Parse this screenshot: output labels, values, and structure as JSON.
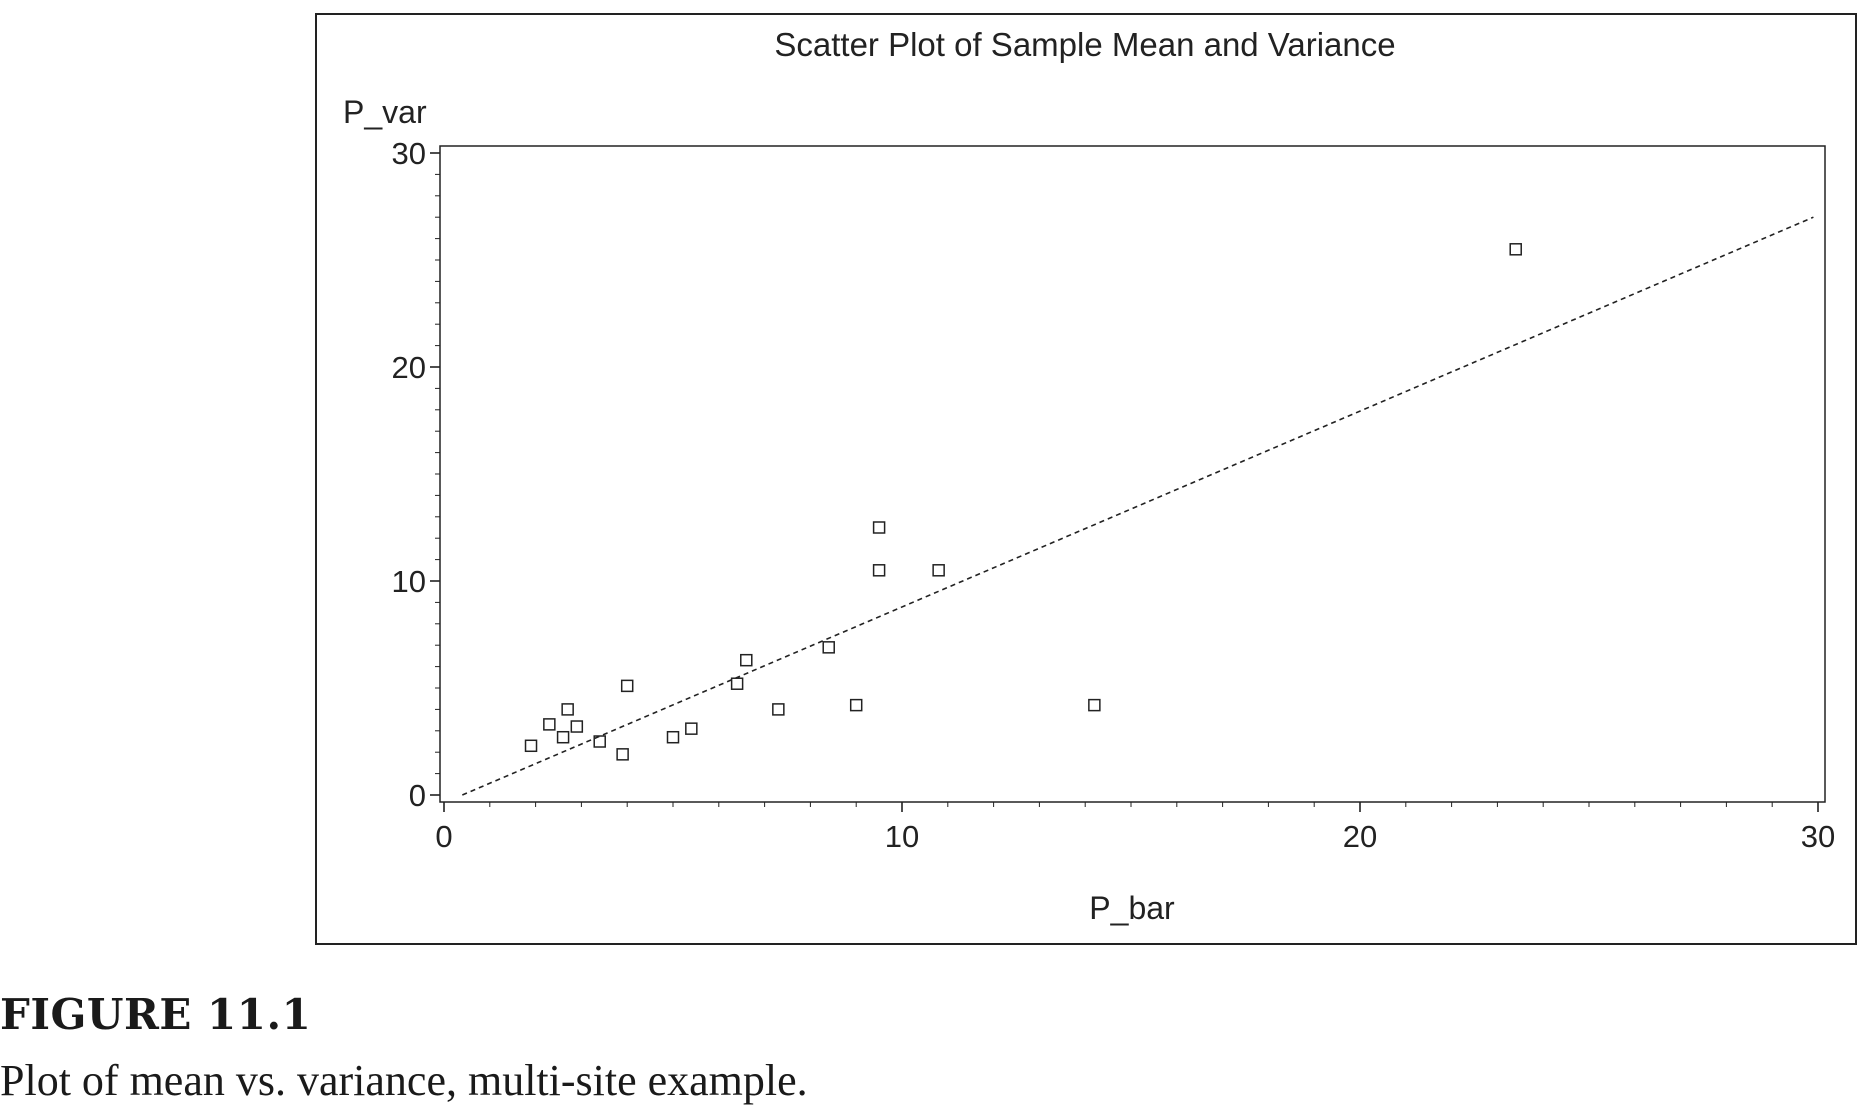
{
  "chart_data": {
    "type": "scatter",
    "title": "Scatter Plot of Sample Mean and Variance",
    "xlabel": "P_bar",
    "ylabel": "P_var",
    "xlim": [
      0,
      30
    ],
    "ylim": [
      0,
      30
    ],
    "xticks": [
      0,
      10,
      20,
      30
    ],
    "yticks": [
      0,
      10,
      20,
      30
    ],
    "grid": false,
    "marker": "open-square",
    "points": [
      {
        "x": 1.9,
        "y": 2.3
      },
      {
        "x": 2.3,
        "y": 3.3
      },
      {
        "x": 2.6,
        "y": 2.7
      },
      {
        "x": 2.7,
        "y": 4.0
      },
      {
        "x": 2.9,
        "y": 3.2
      },
      {
        "x": 3.4,
        "y": 2.5
      },
      {
        "x": 3.9,
        "y": 1.9
      },
      {
        "x": 4.0,
        "y": 5.1
      },
      {
        "x": 5.0,
        "y": 2.7
      },
      {
        "x": 5.4,
        "y": 3.1
      },
      {
        "x": 6.4,
        "y": 5.2
      },
      {
        "x": 6.6,
        "y": 6.3
      },
      {
        "x": 7.3,
        "y": 4.0
      },
      {
        "x": 8.4,
        "y": 6.9
      },
      {
        "x": 9.0,
        "y": 4.2
      },
      {
        "x": 9.5,
        "y": 10.5
      },
      {
        "x": 9.5,
        "y": 12.5
      },
      {
        "x": 10.8,
        "y": 10.5
      },
      {
        "x": 14.2,
        "y": 4.2
      },
      {
        "x": 23.4,
        "y": 25.5
      }
    ],
    "reference_line": {
      "style": "dashed",
      "x": [
        0.4,
        29.9
      ],
      "y": [
        0.0,
        27.0
      ]
    }
  },
  "caption": {
    "number": "FIGURE 11.1",
    "text": "Plot of mean vs. variance, multi-site example."
  }
}
